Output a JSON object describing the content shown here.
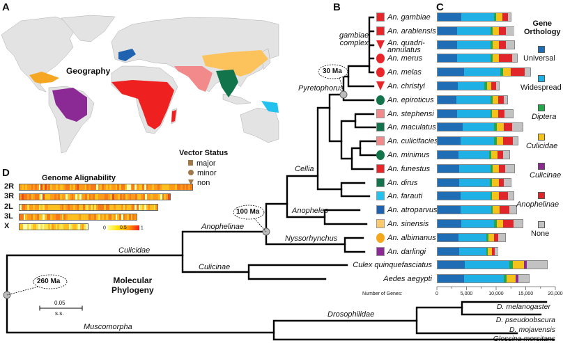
{
  "panels": {
    "a": "A",
    "b": "B",
    "c": "C",
    "d": "D"
  },
  "map": {
    "label": "Geography",
    "land_color": "#e3e3e3"
  },
  "vector_status": {
    "title": "Vector Status",
    "items": [
      {
        "label": "major",
        "shape": "square"
      },
      {
        "label": "minor",
        "shape": "circle"
      },
      {
        "label": "non",
        "shape": "triangle"
      }
    ],
    "color": "#a0784a"
  },
  "tree": {
    "clades": {
      "gambiae_complex": "gambiae\ncomplex",
      "pyretophorus": "Pyretophorus",
      "cellia": "Cellia",
      "anopheles": "Anopheles",
      "nyssorhynchus": "Nyssorhynchus",
      "anophelinae": "Anophelinae",
      "culicinae": "Culicinae",
      "culicidae": "Culicidae",
      "muscomorpha": "Muscomorpha",
      "drosophilidae": "Drosophilidae"
    },
    "dates": {
      "d30": "30 Ma",
      "d100": "100 Ma",
      "d260": "260 Ma"
    },
    "title": "Molecular\nPhylogeny",
    "scale": {
      "value": "0.05",
      "unit": "s.s."
    },
    "outgroups": [
      "Culex quinquefasciatus",
      "Aedes aegypti",
      "D. melanogaster",
      "D. pseudoobscura",
      "D. mojavensis",
      "Glossina morsitans"
    ]
  },
  "legend": {
    "title": "Gene\nOrthology",
    "categories": [
      {
        "label": "Universal",
        "color": "#1f6db5",
        "italic": false
      },
      {
        "label": "Widespread",
        "color": "#1fb0e6",
        "italic": false
      },
      {
        "label": "Diptera",
        "color": "#22a84a",
        "italic": true
      },
      {
        "label": "Culicidae",
        "color": "#f5c21b",
        "italic": true
      },
      {
        "label": "Culicinae",
        "color": "#8b2a8f",
        "italic": true
      },
      {
        "label": "Anophelinae",
        "color": "#e0262a",
        "italic": true
      },
      {
        "label": "None",
        "color": "#c2c2c2",
        "italic": false
      }
    ]
  },
  "chart_data": {
    "type": "bar",
    "orientation": "horizontal",
    "stacked": true,
    "xlabel": "Number of Genes:",
    "xlim": [
      0,
      20000
    ],
    "xticks": [
      "0",
      "5,000",
      "10,000",
      "15,000",
      "20,000"
    ],
    "series_names": [
      "Universal",
      "Widespread",
      "Diptera",
      "Culicidae",
      "Culicinae",
      "Anophelinae",
      "None"
    ],
    "species": [
      {
        "name": "An. gambiae",
        "marker": "square",
        "color": "#e8262a",
        "values": [
          4100,
          5600,
          400,
          1000,
          0,
          1000,
          500
        ]
      },
      {
        "name": "An. arabiensis",
        "marker": "square",
        "color": "#e8262a",
        "values": [
          3300,
          5800,
          400,
          1100,
          0,
          1200,
          1200
        ]
      },
      {
        "name": "An. quadri-\nannulatus",
        "marker": "triangle",
        "color": "#e8262a",
        "values": [
          3300,
          5800,
          400,
          1100,
          0,
          1200,
          1400
        ]
      },
      {
        "name": "An. merus",
        "marker": "circle",
        "color": "#e8262a",
        "values": [
          3350,
          5750,
          400,
          1000,
          0,
          2300,
          900
        ]
      },
      {
        "name": "An. melas",
        "marker": "circle",
        "color": "#e8262a",
        "values": [
          4550,
          6250,
          450,
          1300,
          0,
          2350,
          1000
        ]
      },
      {
        "name": "An. christyi",
        "marker": "triangle",
        "color": "#e8262a",
        "values": [
          3500,
          4600,
          400,
          800,
          0,
          800,
          500
        ]
      },
      {
        "name": "An. epiroticus",
        "marker": "circle",
        "color": "#11744a",
        "values": [
          3300,
          5850,
          350,
          950,
          0,
          950,
          550
        ]
      },
      {
        "name": "An. stephensi",
        "marker": "square",
        "color": "#f28a8c",
        "values": [
          3300,
          5800,
          300,
          1050,
          0,
          1000,
          1500
        ]
      },
      {
        "name": "An. maculatus",
        "marker": "square",
        "color": "#11744a",
        "values": [
          4350,
          5350,
          500,
          1200,
          0,
          1400,
          1800
        ]
      },
      {
        "name": "An. culicifacies",
        "marker": "square",
        "color": "#f28a8c",
        "values": [
          3950,
          5750,
          500,
          1000,
          0,
          1750,
          850
        ]
      },
      {
        "name": "An. minimus",
        "marker": "circle",
        "color": "#11744a",
        "values": [
          3600,
          5300,
          350,
          1050,
          0,
          950,
          1150
        ]
      },
      {
        "name": "An. funestus",
        "marker": "square",
        "color": "#e8262a",
        "values": [
          3700,
          5400,
          400,
          1100,
          0,
          1000,
          1600
        ]
      },
      {
        "name": "An. dirus",
        "marker": "square",
        "color": "#11744a",
        "values": [
          3700,
          5300,
          400,
          1100,
          0,
          900,
          1200
        ]
      },
      {
        "name": "An. farauti",
        "marker": "square",
        "color": "#22c1ee",
        "values": [
          3900,
          5150,
          300,
          1150,
          0,
          1600,
          950
        ]
      },
      {
        "name": "An. atroparvus",
        "marker": "square",
        "color": "#1f63b0",
        "values": [
          3900,
          5300,
          300,
          1100,
          0,
          1700,
          1250
        ]
      },
      {
        "name": "An. sinensis",
        "marker": "square",
        "color": "#fcc96a",
        "values": [
          4100,
          5600,
          500,
          1100,
          0,
          1750,
          1500
        ]
      },
      {
        "name": "An. albimanus",
        "marker": "circle",
        "color": "#f4a71c",
        "values": [
          3600,
          4850,
          350,
          900,
          0,
          700,
          1300
        ]
      },
      {
        "name": "An. darlingi",
        "marker": "square",
        "color": "#8b2a95",
        "values": [
          3700,
          4750,
          250,
          700,
          0,
          500,
          400
        ]
      },
      {
        "name": "Culex quinquefasciatus",
        "marker": "none",
        "color": "",
        "values": [
          4650,
          7650,
          600,
          1900,
          500,
          0,
          3400
        ]
      },
      {
        "name": "Aedes aegypti",
        "marker": "none",
        "color": "",
        "values": [
          4500,
          6900,
          450,
          1550,
          500,
          0,
          1800
        ]
      }
    ]
  },
  "alignability": {
    "title": "Genome Alignability",
    "chromosomes": [
      {
        "name": "2R",
        "relative_length": 1.0
      },
      {
        "name": "3R",
        "relative_length": 0.87
      },
      {
        "name": "2L",
        "relative_length": 0.8
      },
      {
        "name": "3L",
        "relative_length": 0.68
      },
      {
        "name": "X",
        "relative_length": 0.4
      }
    ],
    "scale": {
      "min": "0",
      "mid": "0.5",
      "max": "1"
    }
  }
}
